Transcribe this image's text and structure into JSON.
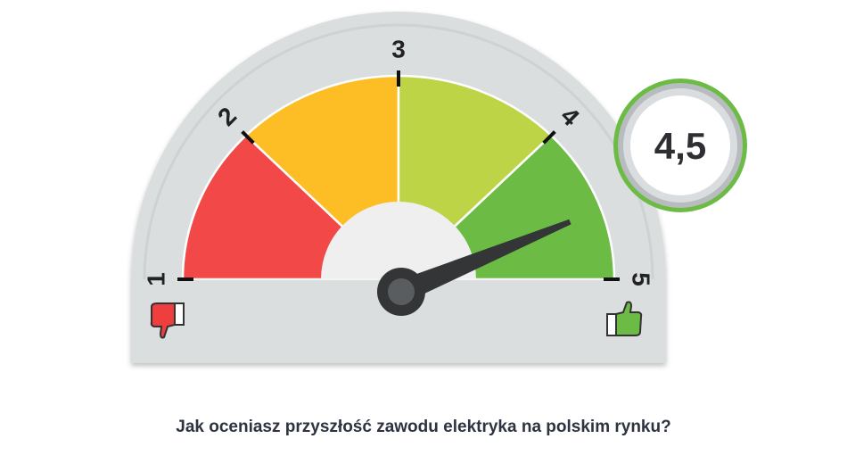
{
  "chart_data": {
    "type": "gauge",
    "min": 1,
    "max": 5,
    "value": 4.5,
    "ticks": [
      "1",
      "2",
      "3",
      "4",
      "5"
    ],
    "bands": [
      {
        "from": 1,
        "to": 2,
        "color": "#f24848"
      },
      {
        "from": 2,
        "to": 3,
        "color": "#fdbd25"
      },
      {
        "from": 3,
        "to": 4,
        "color": "#bcd446"
      },
      {
        "from": 4,
        "to": 5,
        "color": "#6cbb45"
      }
    ],
    "value_label": "4,5",
    "low_icon": "thumbs-down-icon",
    "high_icon": "thumbs-up-icon",
    "title": "Jak oceniasz przyszłość zawodu elektryka na polskim rynku?"
  }
}
